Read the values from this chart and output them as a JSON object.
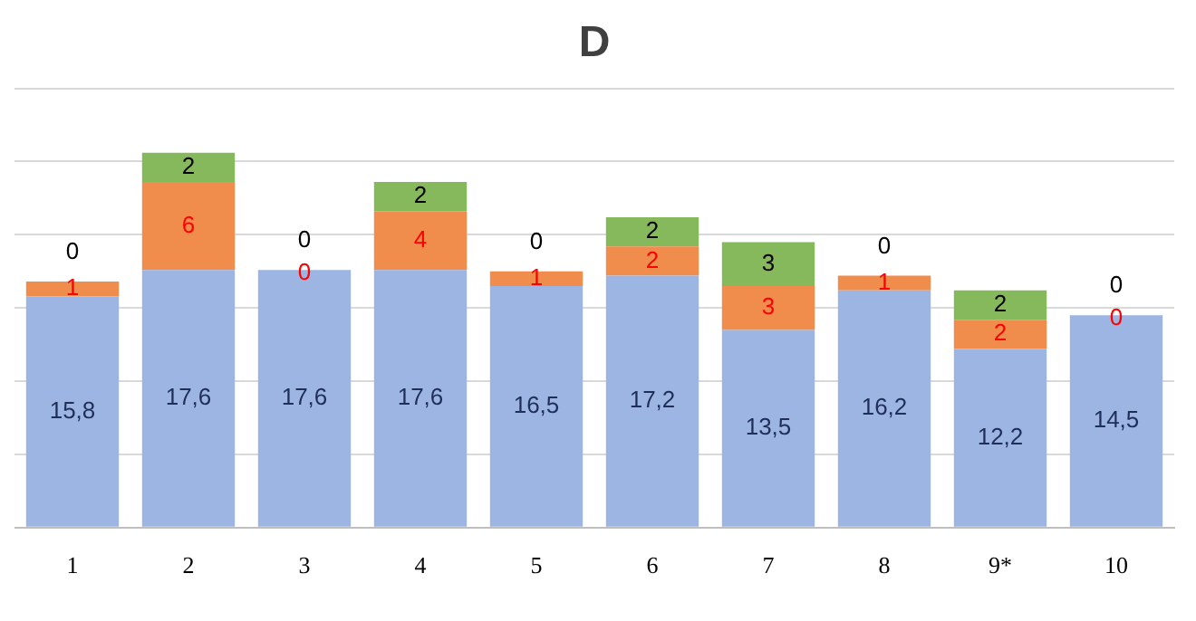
{
  "chart_data": {
    "type": "bar",
    "title": "D",
    "stacked": true,
    "grid": "y",
    "legend": false,
    "tick_labels": "x",
    "categories": [
      "1",
      "2",
      "3",
      "4",
      "5",
      "6",
      "7",
      "8",
      "9*",
      "10"
    ],
    "ylim": [
      0,
      30
    ],
    "yticks": [
      0,
      5,
      10,
      15,
      20,
      25,
      30
    ],
    "series": [
      {
        "color": "#9db5e2",
        "values": [
          15.8,
          17.6,
          17.6,
          17.6,
          16.5,
          17.2,
          13.5,
          16.2,
          12.2,
          14.5
        ],
        "value_labels": [
          "15,8",
          "17,6",
          "17,6",
          "17,6",
          "16,5",
          "17,2",
          "13,5",
          "16,2",
          "12,2",
          "14,5"
        ]
      },
      {
        "color": "#f08c4c",
        "values": [
          1,
          6,
          0,
          4,
          1,
          2,
          3,
          1,
          2,
          0
        ],
        "value_labels": [
          "1",
          "6",
          "0",
          "4",
          "1",
          "2",
          "3",
          "1",
          "2",
          "0"
        ]
      },
      {
        "color": "#86b85c",
        "values": [
          0,
          2,
          0,
          2,
          0,
          2,
          3,
          0,
          2,
          0
        ],
        "value_labels": [
          "0",
          "2",
          "0",
          "2",
          "0",
          "2",
          "3",
          "0",
          "2",
          "0"
        ]
      }
    ]
  }
}
